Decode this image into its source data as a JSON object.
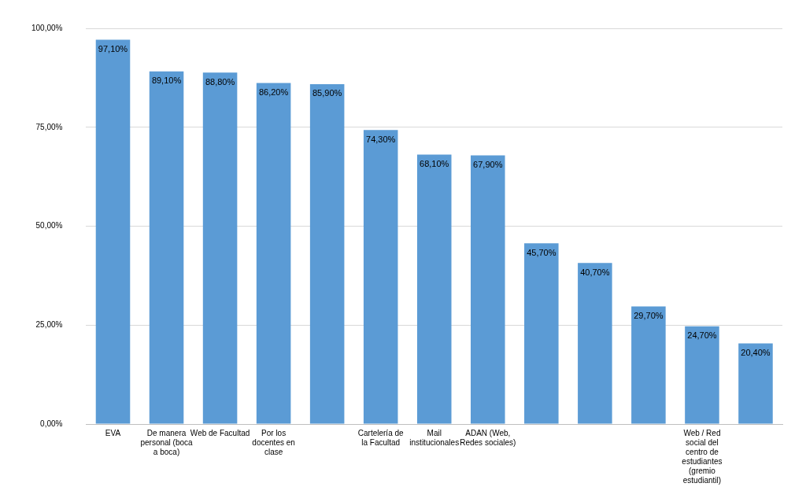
{
  "chart_data": {
    "type": "bar",
    "categories": [
      "EVA",
      "De manera personal (boca a boca)",
      "Web de Facultad",
      "Por los docentes en clase",
      null,
      "Cartelería de la Facultad",
      "Mail institucionales",
      "ADAN (Web, Redes sociales)",
      null,
      null,
      null,
      "Web / Red social del centro de estudiantes (gremio estudiantil)",
      null
    ],
    "values": [
      97.1,
      89.1,
      88.8,
      86.2,
      85.9,
      74.3,
      68.1,
      67.9,
      45.7,
      40.7,
      29.7,
      24.7,
      20.4
    ],
    "value_labels": [
      "97,10%",
      "89,10%",
      "88,80%",
      "86,20%",
      "85,90%",
      "74,30%",
      "68,10%",
      "67,90%",
      "45,70%",
      "40,70%",
      "29,70%",
      "24,70%",
      "20,40%"
    ],
    "color": "#5b9bd5",
    "ylim": [
      0,
      100
    ],
    "yticks": [
      {
        "value": 0,
        "label": "0,00%"
      },
      {
        "value": 25,
        "label": "25,00%"
      },
      {
        "value": 50,
        "label": "50,00%"
      },
      {
        "value": 75,
        "label": "75,00%"
      },
      {
        "value": 100,
        "label": "100,00%"
      }
    ],
    "grid": "y",
    "legend": false
  }
}
